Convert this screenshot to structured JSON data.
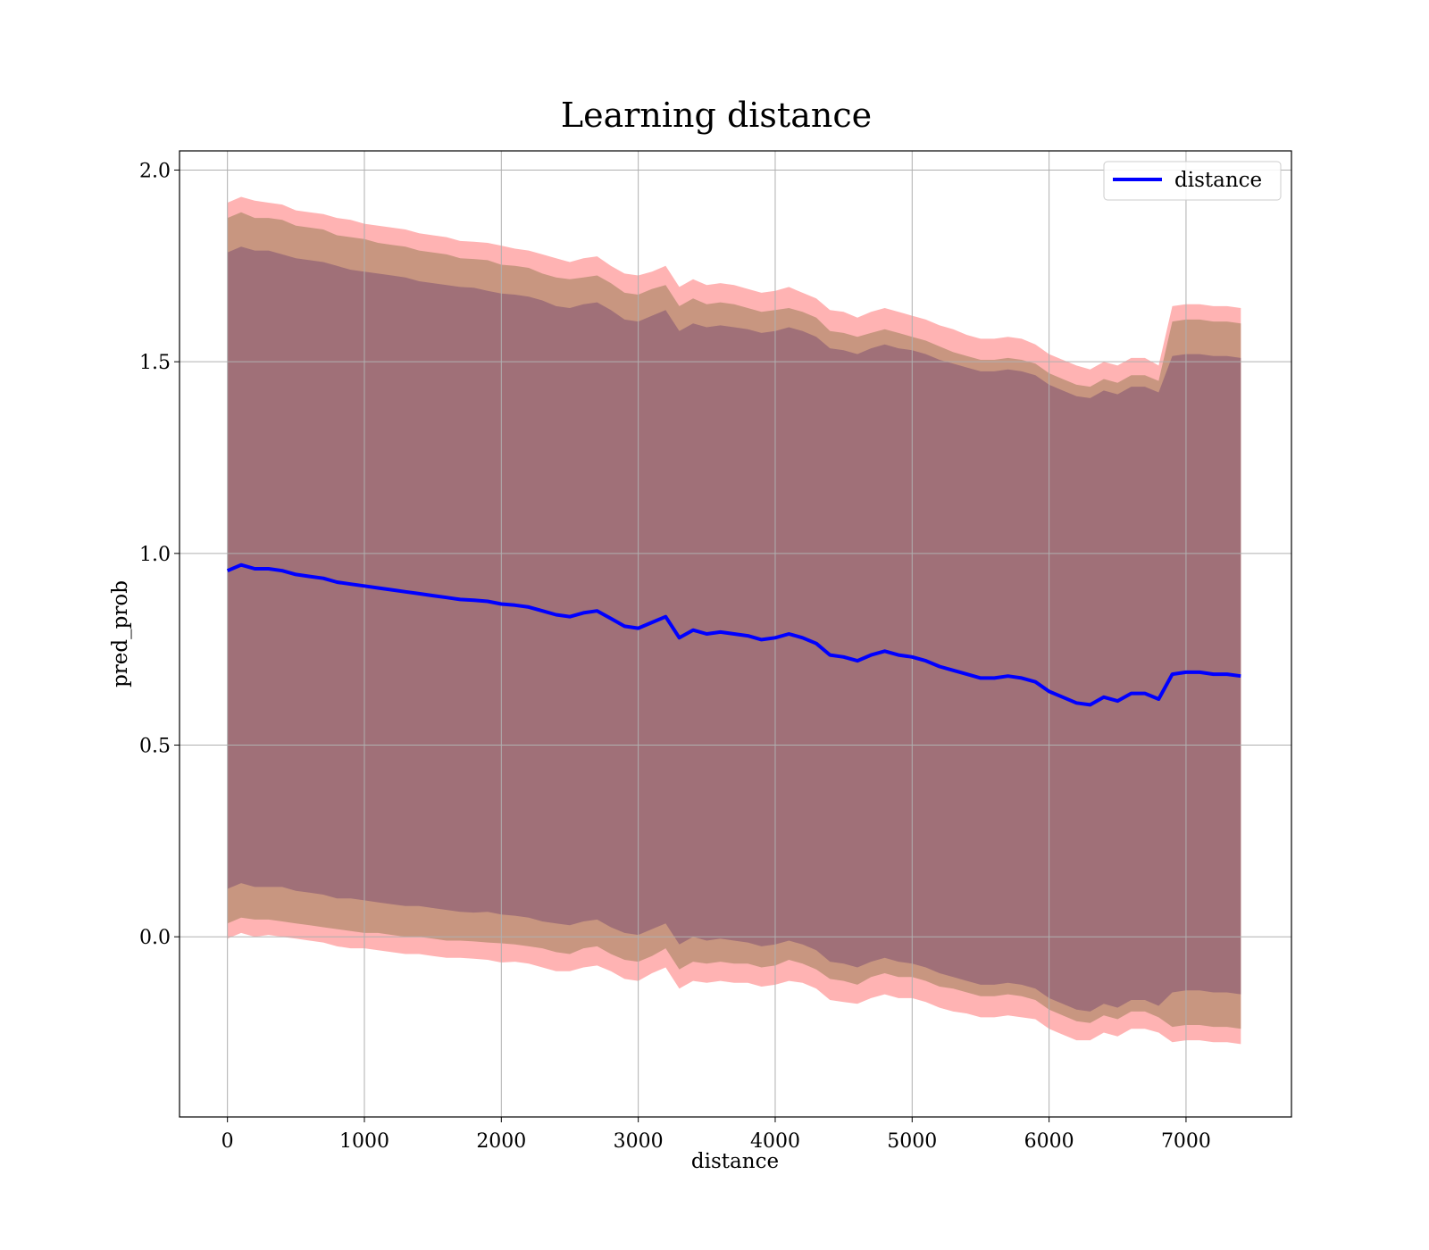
{
  "chart_data": {
    "type": "line",
    "title": "Learning distance",
    "xlabel": "distance",
    "ylabel": "pred_prob",
    "xlim": [
      -350,
      7770
    ],
    "ylim": [
      -0.47,
      2.05
    ],
    "x_ticks": [
      0,
      1000,
      2000,
      3000,
      4000,
      5000,
      6000,
      7000
    ],
    "y_ticks": [
      0.0,
      0.5,
      1.0,
      1.5,
      2.0
    ],
    "x_tick_labels": [
      "0",
      "1000",
      "2000",
      "3000",
      "4000",
      "5000",
      "6000",
      "7000"
    ],
    "y_tick_labels": [
      "0.0",
      "0.5",
      "1.0",
      "1.5",
      "2.0"
    ],
    "grid": true,
    "legend": {
      "position": "top-right",
      "entries": [
        "distance"
      ]
    },
    "colors": {
      "line": "#0000ff",
      "band_outer": "#ff9999",
      "band_middle": "#c89680",
      "band_inner": "#a07078"
    },
    "series": [
      {
        "name": "distance",
        "x": [
          0,
          100,
          200,
          300,
          400,
          500,
          600,
          700,
          800,
          900,
          1000,
          1100,
          1200,
          1300,
          1400,
          1500,
          1600,
          1700,
          1800,
          1900,
          2000,
          2100,
          2200,
          2300,
          2400,
          2500,
          2600,
          2700,
          2800,
          2900,
          3000,
          3100,
          3200,
          3300,
          3400,
          3500,
          3600,
          3700,
          3800,
          3900,
          4000,
          4100,
          4200,
          4300,
          4400,
          4500,
          4600,
          4700,
          4800,
          4900,
          5000,
          5100,
          5200,
          5300,
          5400,
          5500,
          5600,
          5700,
          5800,
          5900,
          6000,
          6100,
          6200,
          6300,
          6400,
          6500,
          6600,
          6700,
          6800,
          6900,
          7000,
          7100,
          7200,
          7300,
          7400
        ],
        "y": [
          0.955,
          0.97,
          0.96,
          0.96,
          0.955,
          0.945,
          0.94,
          0.935,
          0.925,
          0.92,
          0.915,
          0.91,
          0.905,
          0.9,
          0.895,
          0.89,
          0.885,
          0.88,
          0.878,
          0.875,
          0.868,
          0.865,
          0.86,
          0.85,
          0.84,
          0.835,
          0.845,
          0.85,
          0.83,
          0.81,
          0.805,
          0.82,
          0.835,
          0.78,
          0.8,
          0.79,
          0.795,
          0.79,
          0.785,
          0.775,
          0.78,
          0.79,
          0.78,
          0.765,
          0.735,
          0.73,
          0.72,
          0.735,
          0.745,
          0.735,
          0.73,
          0.72,
          0.705,
          0.695,
          0.685,
          0.675,
          0.675,
          0.68,
          0.675,
          0.665,
          0.64,
          0.625,
          0.61,
          0.605,
          0.625,
          0.615,
          0.635,
          0.635,
          0.62,
          0.685,
          0.69,
          0.69,
          0.685,
          0.685,
          0.68
        ],
        "band_outer_half_width": [
          0.96,
          0.96,
          0.96,
          0.955,
          0.955,
          0.95,
          0.95,
          0.95,
          0.95,
          0.95,
          0.945,
          0.945,
          0.945,
          0.945,
          0.94,
          0.94,
          0.94,
          0.935,
          0.935,
          0.935,
          0.935,
          0.93,
          0.93,
          0.93,
          0.93,
          0.925,
          0.925,
          0.925,
          0.92,
          0.92,
          0.92,
          0.915,
          0.915,
          0.915,
          0.915,
          0.91,
          0.91,
          0.91,
          0.905,
          0.905,
          0.905,
          0.905,
          0.9,
          0.9,
          0.9,
          0.9,
          0.895,
          0.895,
          0.895,
          0.895,
          0.89,
          0.89,
          0.89,
          0.89,
          0.885,
          0.885,
          0.885,
          0.885,
          0.885,
          0.88,
          0.88,
          0.88,
          0.88,
          0.875,
          0.875,
          0.875,
          0.875,
          0.875,
          0.87,
          0.96,
          0.96,
          0.96,
          0.96,
          0.96,
          0.96
        ],
        "band_middle_half_width": [
          0.92,
          0.92,
          0.915,
          0.915,
          0.915,
          0.91,
          0.91,
          0.91,
          0.905,
          0.905,
          0.905,
          0.9,
          0.9,
          0.9,
          0.895,
          0.895,
          0.895,
          0.89,
          0.89,
          0.89,
          0.885,
          0.885,
          0.885,
          0.88,
          0.88,
          0.88,
          0.875,
          0.875,
          0.875,
          0.87,
          0.87,
          0.87,
          0.865,
          0.865,
          0.865,
          0.86,
          0.86,
          0.86,
          0.855,
          0.855,
          0.855,
          0.85,
          0.85,
          0.85,
          0.845,
          0.845,
          0.845,
          0.84,
          0.84,
          0.84,
          0.835,
          0.835,
          0.835,
          0.83,
          0.83,
          0.83,
          0.83,
          0.83,
          0.83,
          0.83,
          0.83,
          0.83,
          0.83,
          0.83,
          0.83,
          0.83,
          0.83,
          0.83,
          0.83,
          0.92,
          0.92,
          0.92,
          0.92,
          0.92,
          0.92
        ],
        "band_inner_half_width": [
          0.83,
          0.83,
          0.83,
          0.83,
          0.825,
          0.825,
          0.825,
          0.825,
          0.825,
          0.82,
          0.82,
          0.82,
          0.82,
          0.82,
          0.815,
          0.815,
          0.815,
          0.815,
          0.815,
          0.81,
          0.81,
          0.81,
          0.81,
          0.81,
          0.805,
          0.805,
          0.805,
          0.805,
          0.805,
          0.8,
          0.8,
          0.8,
          0.8,
          0.8,
          0.8,
          0.8,
          0.8,
          0.8,
          0.8,
          0.8,
          0.8,
          0.8,
          0.8,
          0.8,
          0.8,
          0.8,
          0.8,
          0.8,
          0.8,
          0.8,
          0.8,
          0.8,
          0.8,
          0.8,
          0.8,
          0.8,
          0.8,
          0.8,
          0.8,
          0.8,
          0.8,
          0.8,
          0.8,
          0.8,
          0.8,
          0.8,
          0.8,
          0.8,
          0.8,
          0.83,
          0.83,
          0.83,
          0.83,
          0.83,
          0.83
        ]
      }
    ]
  }
}
